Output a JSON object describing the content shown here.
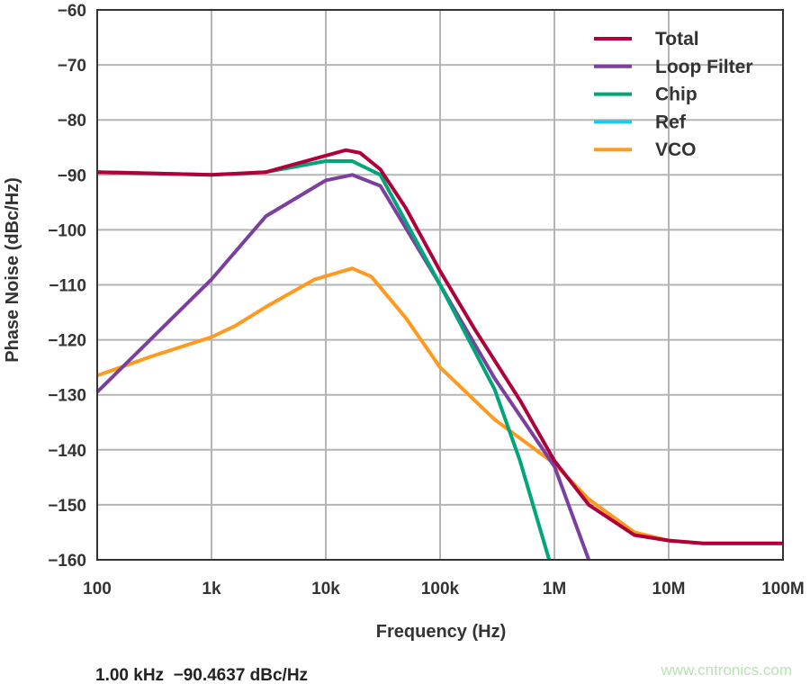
{
  "chart_data": {
    "type": "line",
    "xlabel": "Frequency (Hz)",
    "ylabel": "Phase Noise (dBc/Hz)",
    "xscale": "log",
    "xlim": [
      100,
      100000000
    ],
    "ylim": [
      -160,
      -60
    ],
    "grid": true,
    "legend_position": "top-right",
    "x_tick_values": [
      100,
      1000,
      10000,
      100000,
      1000000,
      10000000,
      100000000
    ],
    "x_tick_labels": [
      "100",
      "1k",
      "10k",
      "100k",
      "1M",
      "10M",
      "100M"
    ],
    "y_ticks": [
      -60,
      -70,
      -80,
      -90,
      -100,
      -110,
      -120,
      -130,
      -140,
      -150,
      -160
    ],
    "y_tick_labels": [
      "−60",
      "−70",
      "−80",
      "−90",
      "−100",
      "−110",
      "−120",
      "−130",
      "−140",
      "−150",
      "−160"
    ],
    "series": [
      {
        "name": "Total",
        "color": "#b0003a",
        "x": [
          100,
          1000,
          3000,
          10000,
          15000,
          20000,
          30000,
          50000,
          100000,
          200000,
          500000,
          1000000,
          2000000,
          5000000,
          10000000,
          20000000,
          100000000
        ],
        "y": [
          -89.5,
          -90,
          -89.5,
          -86.5,
          -85.5,
          -86,
          -89,
          -96,
          -107.5,
          -118,
          -131,
          -142,
          -150,
          -155.5,
          -156.5,
          -157,
          -157
        ]
      },
      {
        "name": "Loop Filter",
        "color": "#7b3fa0",
        "x": [
          100,
          1000,
          3000,
          10000,
          17000,
          30000,
          100000,
          300000,
          1000000,
          2000000
        ],
        "y": [
          -129.5,
          -109,
          -97.5,
          -91,
          -90,
          -92,
          -110,
          -127,
          -143,
          -160
        ]
      },
      {
        "name": "Chip",
        "color": "#00a57a",
        "x": [
          100,
          1000,
          3000,
          10000,
          17000,
          30000,
          100000,
          300000,
          500000,
          900000
        ],
        "y": [
          -89.5,
          -90,
          -89.5,
          -87.5,
          -87.5,
          -90,
          -110,
          -129,
          -142,
          -160
        ]
      },
      {
        "name": "Ref",
        "color": "#1ec8f0",
        "x": [],
        "y": []
      },
      {
        "name": "VCO",
        "color": "#ff9a1e",
        "x": [
          100,
          300,
          1000,
          1600,
          3000,
          8000,
          17000,
          25000,
          50000,
          100000,
          300000,
          1000000,
          2000000,
          5000000,
          10000000,
          20000000,
          100000000
        ],
        "y": [
          -126.5,
          -123,
          -119.5,
          -117.5,
          -114,
          -109,
          -107,
          -108.5,
          -116,
          -125,
          -134.5,
          -142.5,
          -149,
          -155,
          -156.5,
          -157,
          -157
        ]
      }
    ]
  },
  "readout": "1.00 kHz  −90.4637 dBc/Hz",
  "watermark": "www.cntronics.com"
}
